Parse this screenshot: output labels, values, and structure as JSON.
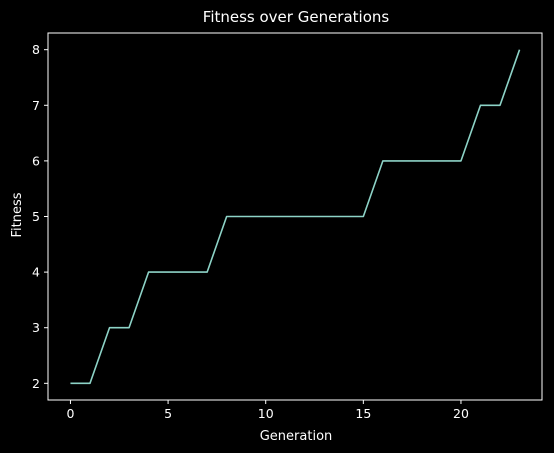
{
  "chart_data": {
    "type": "line",
    "title": "Fitness over Generations",
    "xlabel": "Generation",
    "ylabel": "Fitness",
    "x": [
      0,
      1,
      2,
      3,
      4,
      5,
      6,
      7,
      8,
      9,
      10,
      11,
      12,
      13,
      14,
      15,
      16,
      17,
      18,
      19,
      20,
      21,
      22,
      23
    ],
    "series": [
      {
        "values": [
          2,
          2,
          3,
          3,
          4,
          4,
          4,
          4,
          5,
          5,
          5,
          5,
          5,
          5,
          5,
          5,
          6,
          6,
          6,
          6,
          6,
          7,
          7,
          8
        ]
      }
    ],
    "xlim": [
      -1.15,
      24.15
    ],
    "ylim": [
      1.7,
      8.3
    ],
    "xticks": [
      0,
      5,
      10,
      15,
      20
    ],
    "yticks": [
      2,
      3,
      4,
      5,
      6,
      7,
      8
    ],
    "xtick_labels": [
      "0",
      "5",
      "10",
      "15",
      "20"
    ],
    "ytick_labels": [
      "2",
      "3",
      "4",
      "5",
      "6",
      "7",
      "8"
    ],
    "grid": false,
    "colors": {
      "background": "#000000",
      "axes": "#ffffff",
      "line": "#8dd3c7"
    }
  }
}
